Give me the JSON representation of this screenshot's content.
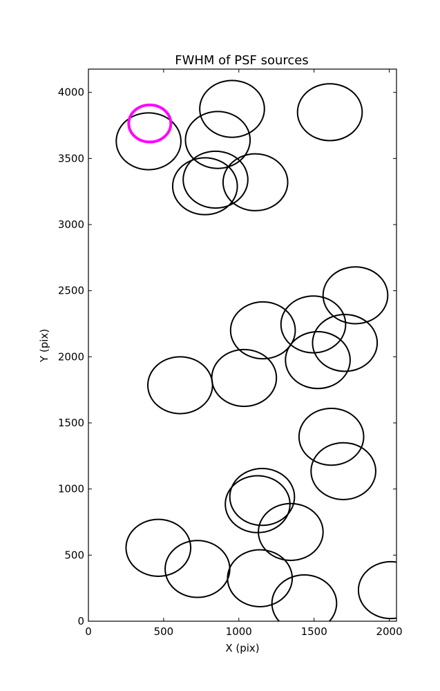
{
  "chart_data": {
    "type": "scatter",
    "title": "FWHM of PSF sources",
    "xlabel": "X (pix)",
    "ylabel": "Y (pix)",
    "xlim": [
      0,
      2048
    ],
    "ylim": [
      0,
      4176
    ],
    "xticks": [
      0,
      500,
      1000,
      1500,
      2000
    ],
    "yticks": [
      0,
      500,
      1000,
      1500,
      2000,
      2500,
      3000,
      3500,
      4000
    ],
    "xtick_labels": [
      "0",
      "500",
      "1000",
      "1500",
      "2000"
    ],
    "ytick_labels": [
      "0",
      "500",
      "1000",
      "1500",
      "2000",
      "2500",
      "3000",
      "3500",
      "4000"
    ],
    "grid": false,
    "legend": "none",
    "marker": "circle (radius = FWHM)",
    "colors": {
      "default": "#000000",
      "highlight": "#ff00ff"
    },
    "sources": [
      {
        "x": 400,
        "y": 3630,
        "r": 215
      },
      {
        "x": 955,
        "y": 3875,
        "r": 215
      },
      {
        "x": 1605,
        "y": 3850,
        "r": 215
      },
      {
        "x": 860,
        "y": 3640,
        "r": 215
      },
      {
        "x": 775,
        "y": 3290,
        "r": 215
      },
      {
        "x": 845,
        "y": 3340,
        "r": 215
      },
      {
        "x": 1110,
        "y": 3320,
        "r": 215
      },
      {
        "x": 1775,
        "y": 2465,
        "r": 215
      },
      {
        "x": 1160,
        "y": 2200,
        "r": 215
      },
      {
        "x": 1495,
        "y": 2245,
        "r": 215
      },
      {
        "x": 1705,
        "y": 2105,
        "r": 215
      },
      {
        "x": 1525,
        "y": 1975,
        "r": 215
      },
      {
        "x": 610,
        "y": 1785,
        "r": 215
      },
      {
        "x": 1035,
        "y": 1840,
        "r": 215
      },
      {
        "x": 1615,
        "y": 1395,
        "r": 215
      },
      {
        "x": 1695,
        "y": 1135,
        "r": 215
      },
      {
        "x": 1155,
        "y": 940,
        "r": 215
      },
      {
        "x": 1125,
        "y": 885,
        "r": 215
      },
      {
        "x": 1345,
        "y": 675,
        "r": 215
      },
      {
        "x": 465,
        "y": 555,
        "r": 215
      },
      {
        "x": 725,
        "y": 395,
        "r": 215
      },
      {
        "x": 1140,
        "y": 325,
        "r": 215
      },
      {
        "x": 1435,
        "y": 135,
        "r": 215
      },
      {
        "x": 2010,
        "y": 235,
        "r": 215
      },
      {
        "x": 408,
        "y": 3765,
        "r": 140,
        "highlight": true
      }
    ]
  }
}
